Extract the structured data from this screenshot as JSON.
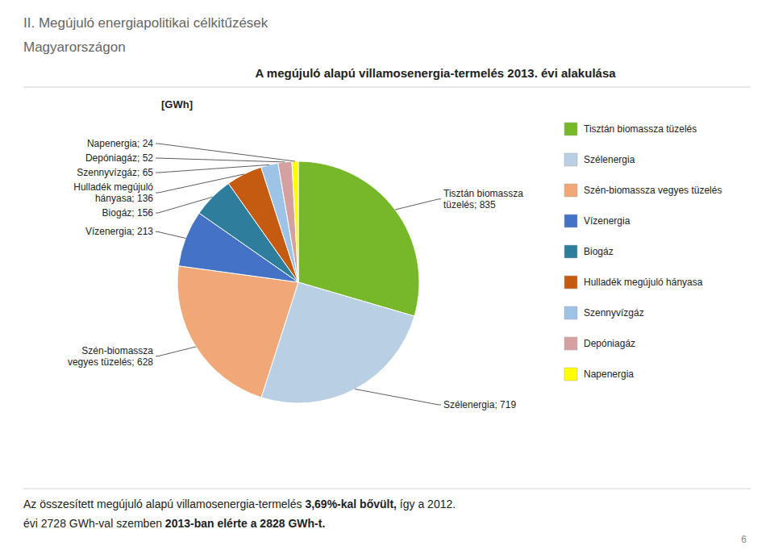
{
  "chart_data": {
    "type": "pie",
    "title": "A megújuló alapú villamosenergia-termelés 2013. évi alakulása",
    "subtitle": "[GWh]",
    "header": [
      "II. Megújuló energiapolitikai célkitűzések",
      "Magyarországon"
    ],
    "categories": [
      "Tisztán biomassza tüzelés",
      "Szélenergia",
      "Szén-biomassza vegyes tüzelés",
      "Vízenergia",
      "Biogáz",
      "Hulladék megújuló hányasa",
      "Szennyvízgáz",
      "Depóniagáz",
      "Napenergia"
    ],
    "values": [
      835,
      719,
      628,
      213,
      156,
      136,
      65,
      52,
      24
    ],
    "colors": [
      "#76b82a",
      "#b8cfe4",
      "#f0a878",
      "#4472c4",
      "#2e7d9c",
      "#c55a11",
      "#9dc3e6",
      "#d4a0a0",
      "#ffff00"
    ],
    "data_labels": true,
    "value_labels": [
      "Tisztán biomassza\ntüzelés; 835",
      "Szélenergia; 719",
      "Szén-biomassza\nvegyes tüzelés; 628",
      "Vízenergia; 213",
      "Biogáz; 156",
      "Hulladék megújuló\nhányasa; 136",
      "Szennyvízgáz; 65",
      "Depóniagáz; 52",
      "Napenergia; 24"
    ],
    "legend": "right",
    "footer": [
      [
        "Az összesített megújuló alapú villamosenergia-termelés ",
        "3,69%-kal bővült,",
        " így a 2012."
      ],
      [
        "évi 2728 GWh-val szemben ",
        "2013-ban elérte a 2828 GWh-t."
      ]
    ],
    "page_number": "6"
  }
}
